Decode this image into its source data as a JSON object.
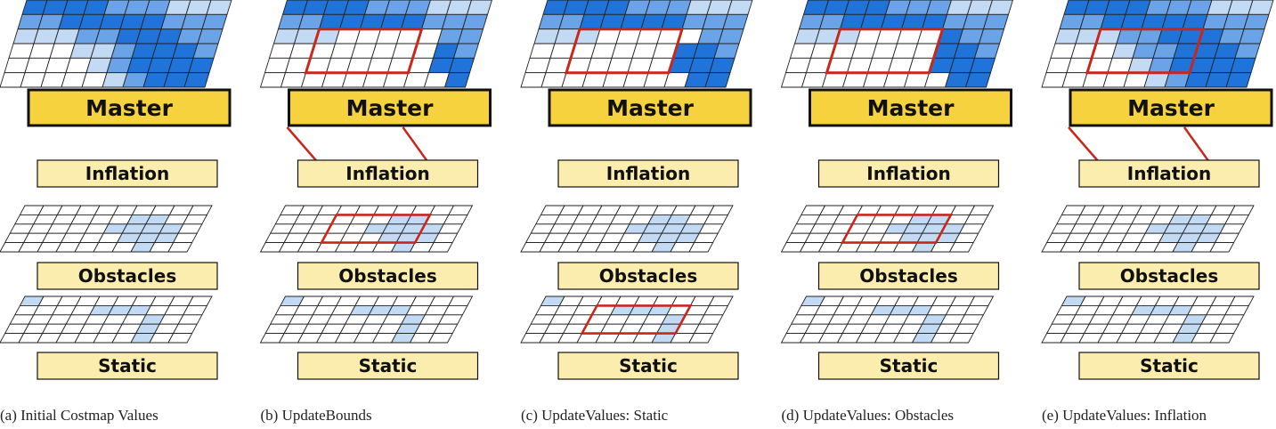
{
  "layer_names": {
    "master": "Master",
    "inflation": "Inflation",
    "obstacles": "Obstacles",
    "static": "Static"
  },
  "colors": {
    "label_master": "#f7d23f",
    "label_layer": "#fbedae",
    "cell_dark": "#1f73d9",
    "cell_medium": "#6aa3e8",
    "cell_light": "#c3daf5",
    "highlight": "#c8281c",
    "grid_line": "#222222"
  },
  "panels": [
    {
      "caption": "(a)  Initial Costmap Values",
      "master_cells": [
        "3333222111",
        "2233333222",
        "1112233322",
        "0001123332",
        "0000123333",
        "0000012333"
      ],
      "master_highlight": null,
      "connector": null,
      "obstacles_highlight": null,
      "static_highlight": null
    },
    {
      "caption": "(b)  UpdateBounds",
      "master_cells": [
        "3333222111",
        "2233333222",
        "1110000022",
        "0000000032",
        "0000000033",
        "0000000003"
      ],
      "master_highlight": [
        2,
        7,
        2,
        5
      ],
      "connector": "master-to-inflation",
      "obstacles_highlight": [
        3,
        8,
        1,
        4
      ],
      "static_highlight": null
    },
    {
      "caption": "(c)  UpdateValues: Static",
      "master_cells": [
        "3333222111",
        "2233333222",
        "1110000022",
        "0000000332",
        "0000000333",
        "0000000033"
      ],
      "master_highlight": [
        2,
        7,
        2,
        5
      ],
      "connector": null,
      "obstacles_highlight": null,
      "static_highlight": [
        3,
        8,
        1,
        4
      ]
    },
    {
      "caption": "(d)  UpdateValues: Obstacles",
      "master_cells": [
        "3333222111",
        "2233333222",
        "1110000322",
        "0000000332",
        "0000000333",
        "0000000033"
      ],
      "master_highlight": [
        2,
        7,
        2,
        5
      ],
      "connector": null,
      "obstacles_highlight": [
        3,
        8,
        1,
        4
      ],
      "static_highlight": null
    },
    {
      "caption": "(e)  UpdateValues: Inflation",
      "master_cells": [
        "3333222111",
        "2233333222",
        "1112233322",
        "0001223332",
        "0000123333",
        "0000012333"
      ],
      "master_highlight": [
        2,
        7,
        2,
        5
      ],
      "connector": "master-to-inflation",
      "obstacles_highlight": null,
      "static_highlight": null
    }
  ],
  "obstacles_cells": [
    "0000000000",
    "0000001100",
    "0000011110",
    "0000001110",
    "0000000100"
  ],
  "static_cells": [
    "1000000000",
    "0000111000",
    "0000000100",
    "0000000100",
    "0000000100"
  ]
}
